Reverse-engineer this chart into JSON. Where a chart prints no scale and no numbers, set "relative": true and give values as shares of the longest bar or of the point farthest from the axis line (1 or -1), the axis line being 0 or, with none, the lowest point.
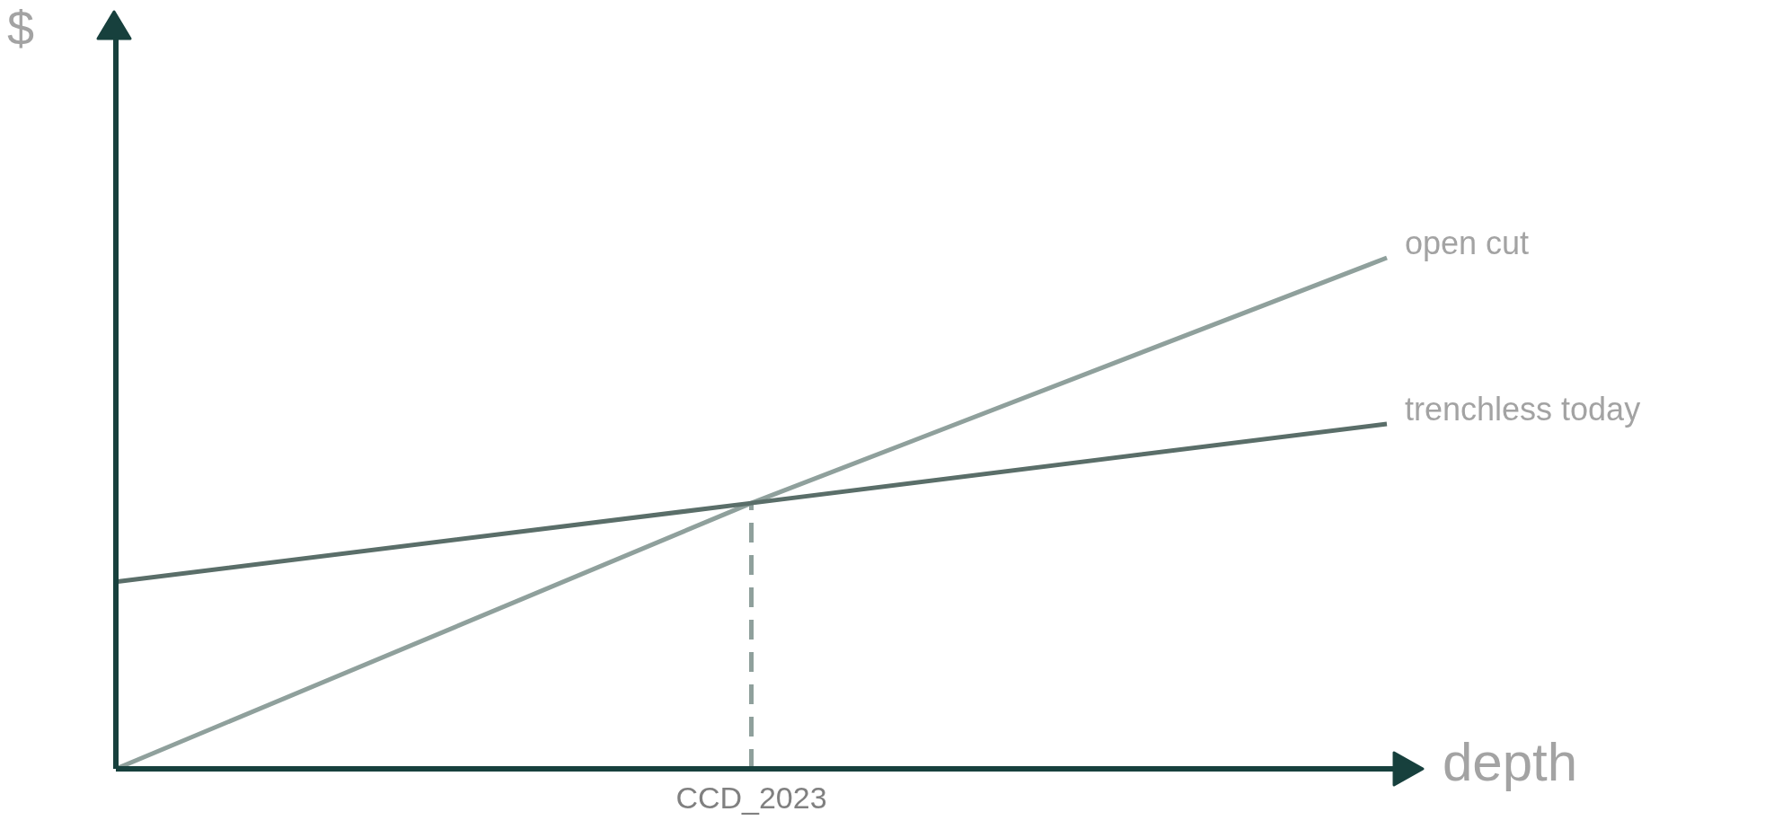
{
  "chart_data": {
    "type": "line",
    "relative": true,
    "xlabel": "depth",
    "ylabel": "$",
    "categories": [
      null,
      null,
      null
    ],
    "series": [
      {
        "name": "open cut",
        "color": "#8fa09c",
        "values": [
          0,
          0.52,
          1
        ]
      },
      {
        "name": "trenchless today",
        "color": "#5a6e69",
        "values": [
          0.366,
          0.52,
          0.675
        ]
      }
    ],
    "ref_lines": [
      {
        "axis": "x",
        "label": "CCD_2023",
        "color": "#8fa09c",
        "line_style": "dashed"
      }
    ],
    "grid": false,
    "legend": false,
    "marker": "none",
    "line_style": "solid"
  }
}
